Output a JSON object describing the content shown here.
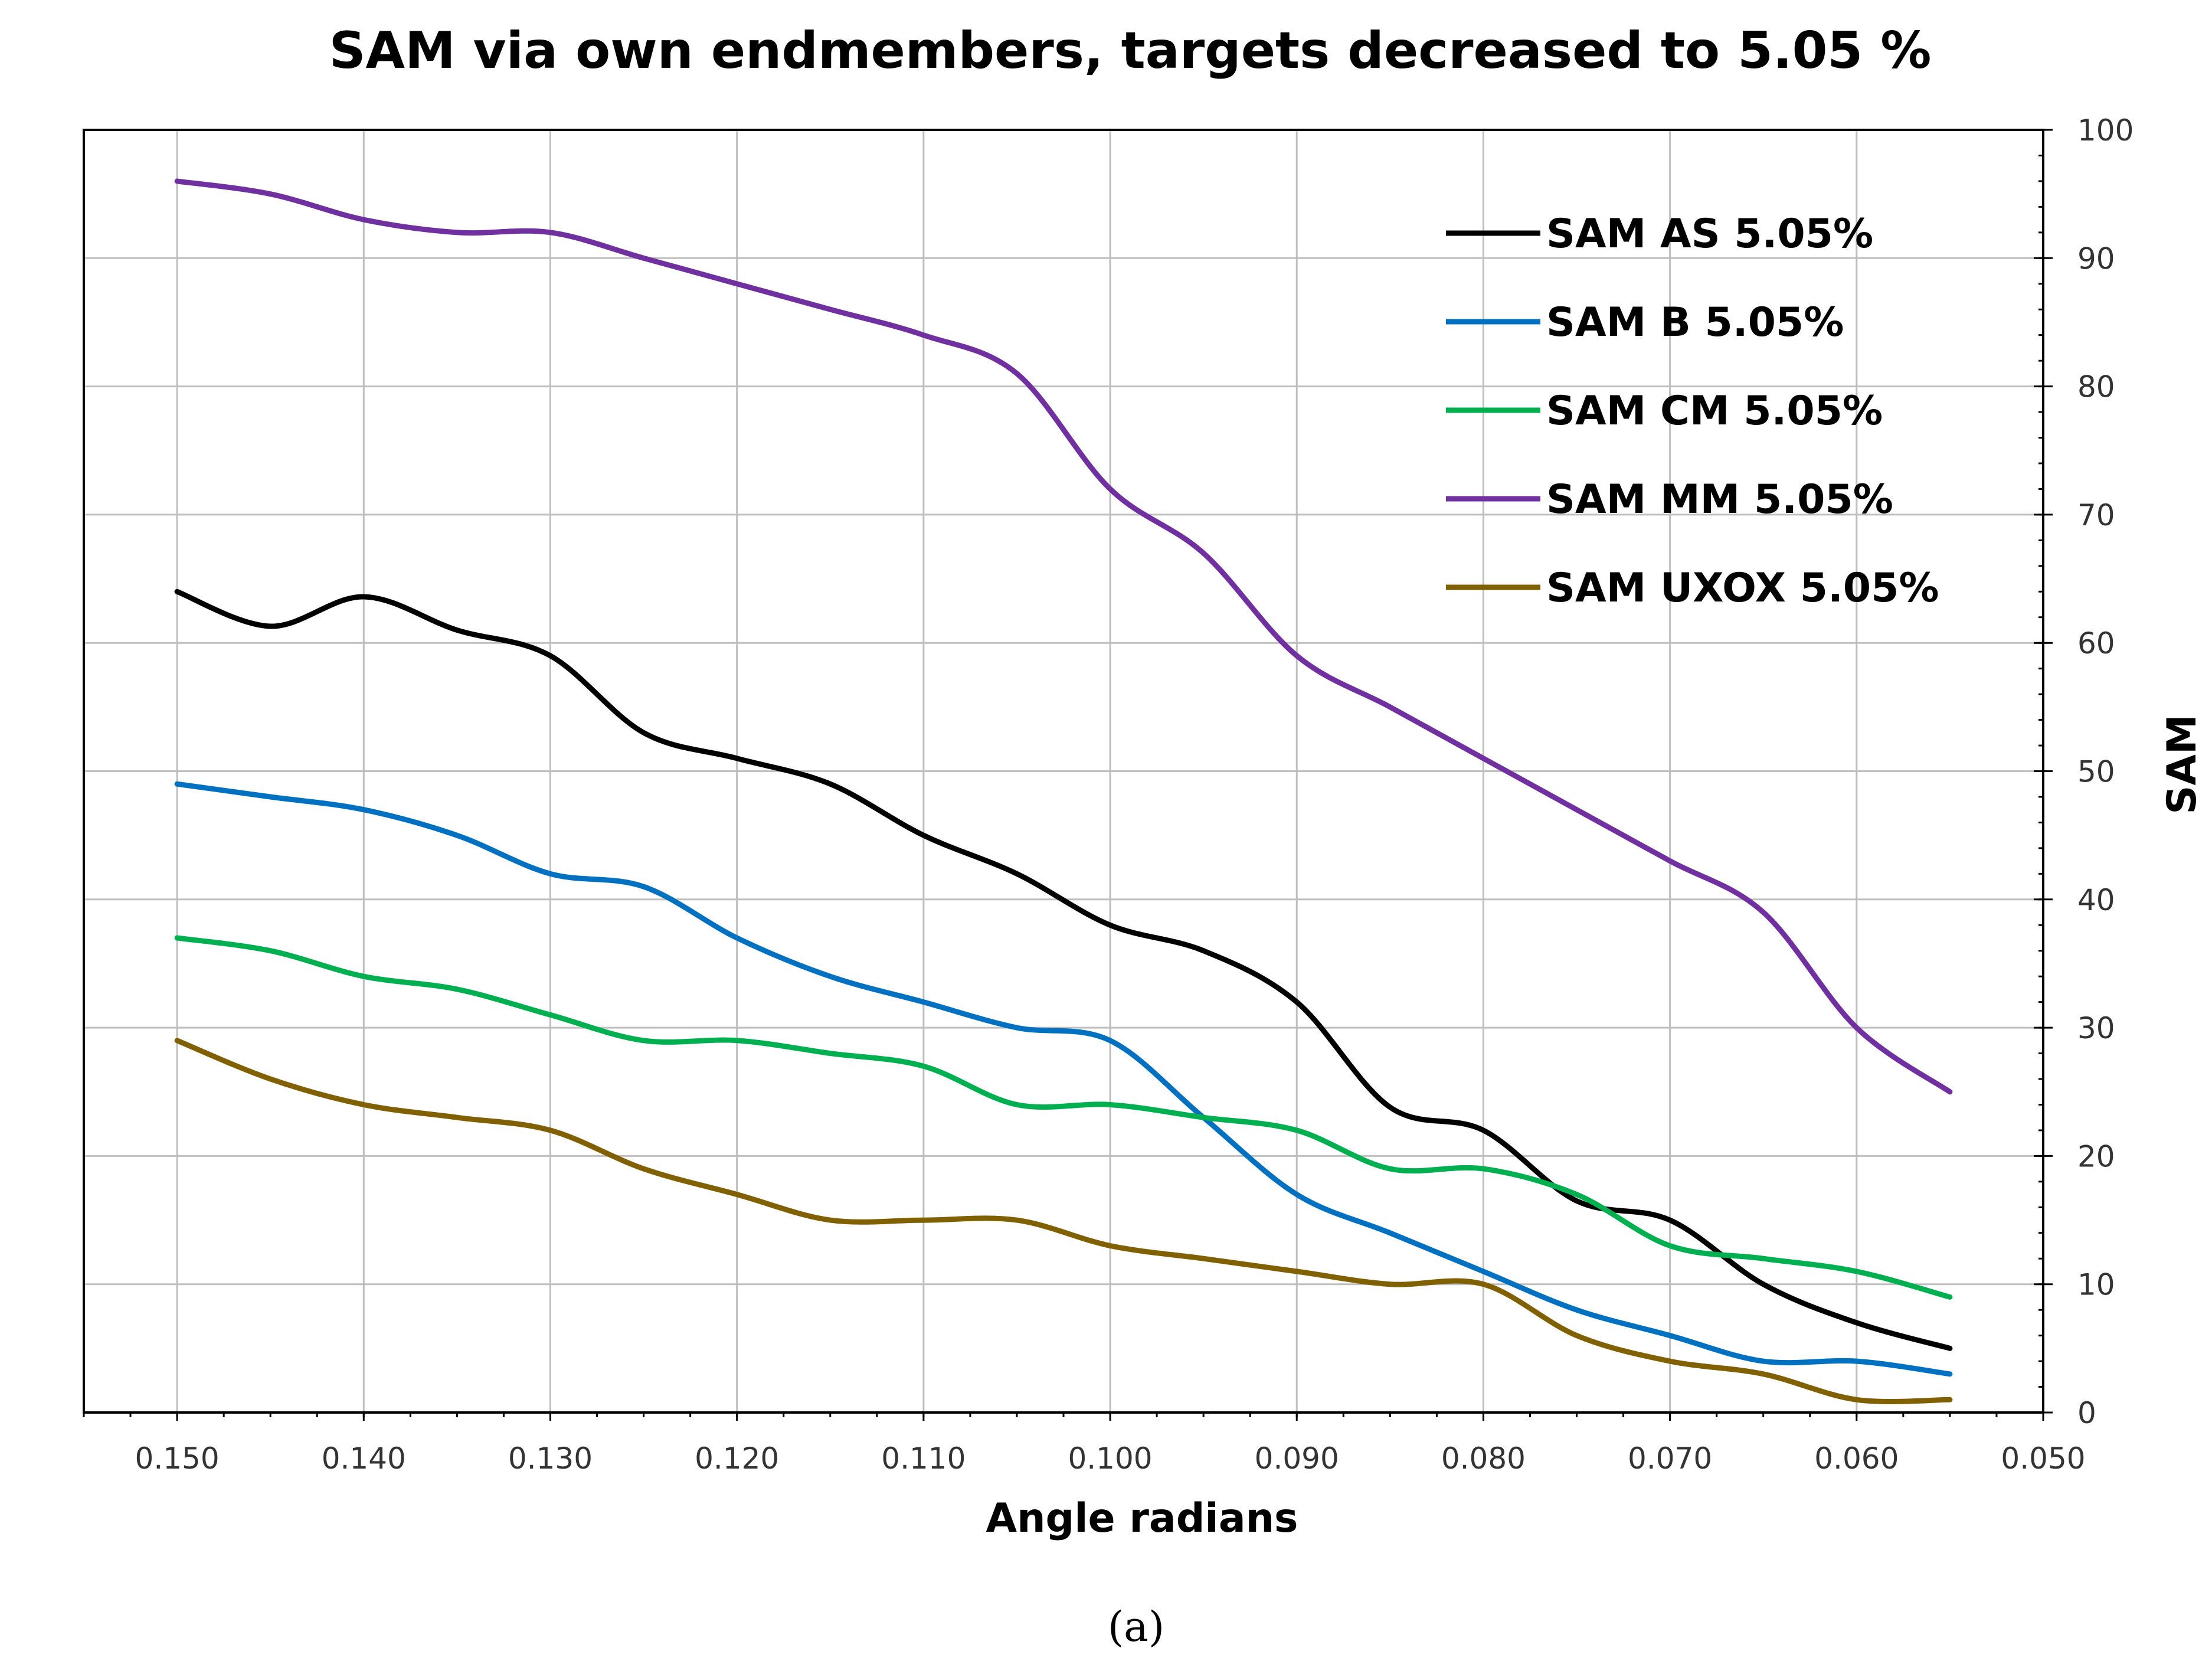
{
  "caption": "(a)",
  "chart_data": {
    "type": "line",
    "title": "SAM via own endmembers, targets decreased to 5.05 %",
    "xlabel": "Angle radians",
    "ylabel": "SAM",
    "xlim": [
      0.155,
      0.05
    ],
    "ylim": [
      0,
      100
    ],
    "x_reversed": true,
    "y_axis_side": "right",
    "grid": true,
    "legend_position": "top-right",
    "x_ticks": [
      0.15,
      0.14,
      0.13,
      0.12,
      0.11,
      0.1,
      0.09,
      0.08,
      0.07,
      0.06,
      0.05
    ],
    "x_tick_labels": [
      "0.150",
      "0.140",
      "0.130",
      "0.120",
      "0.110",
      "0.100",
      "0.090",
      "0.080",
      "0.070",
      "0.060",
      "0.050"
    ],
    "y_ticks": [
      0,
      10,
      20,
      30,
      40,
      50,
      60,
      70,
      80,
      90,
      100
    ],
    "y_tick_labels": [
      "0",
      "10",
      "20",
      "30",
      "40",
      "50",
      "60",
      "70",
      "80",
      "90",
      "100"
    ],
    "x": [
      0.15,
      0.145,
      0.14,
      0.135,
      0.13,
      0.125,
      0.12,
      0.115,
      0.11,
      0.105,
      0.1,
      0.095,
      0.09,
      0.085,
      0.08,
      0.075,
      0.07,
      0.065,
      0.06,
      0.055
    ],
    "series": [
      {
        "name": "SAM AS 5.05%",
        "color": "#000000",
        "values": [
          64,
          61.3,
          63.6,
          61,
          59,
          53,
          51,
          49,
          45,
          42,
          38,
          36,
          32,
          23.8,
          22,
          16.5,
          15,
          10,
          7,
          5
        ]
      },
      {
        "name": "SAM B 5.05%",
        "color": "#0070c0",
        "values": [
          49,
          48,
          47,
          45,
          42,
          41,
          37,
          34,
          32,
          30,
          29,
          23,
          17,
          14,
          11,
          8,
          6,
          4,
          4,
          3
        ]
      },
      {
        "name": "SAM CM 5.05%",
        "color": "#00b050",
        "values": [
          37,
          36,
          34,
          33,
          31,
          29,
          29,
          28,
          27,
          24,
          24,
          23,
          22,
          19,
          19,
          17,
          13,
          12,
          11,
          9
        ]
      },
      {
        "name": "SAM MM 5.05%",
        "color": "#7030a0",
        "values": [
          96,
          95,
          93,
          92,
          92,
          90,
          88,
          86,
          84,
          81,
          72,
          67,
          59,
          55,
          51,
          47,
          43,
          39,
          30,
          25
        ]
      },
      {
        "name": "SAM UXOX 5.05%",
        "color": "#806000",
        "values": [
          29,
          26,
          24,
          23,
          22,
          19,
          17,
          15,
          15,
          15,
          13,
          12,
          11,
          10,
          10,
          6,
          4,
          3,
          1,
          1
        ]
      }
    ]
  }
}
